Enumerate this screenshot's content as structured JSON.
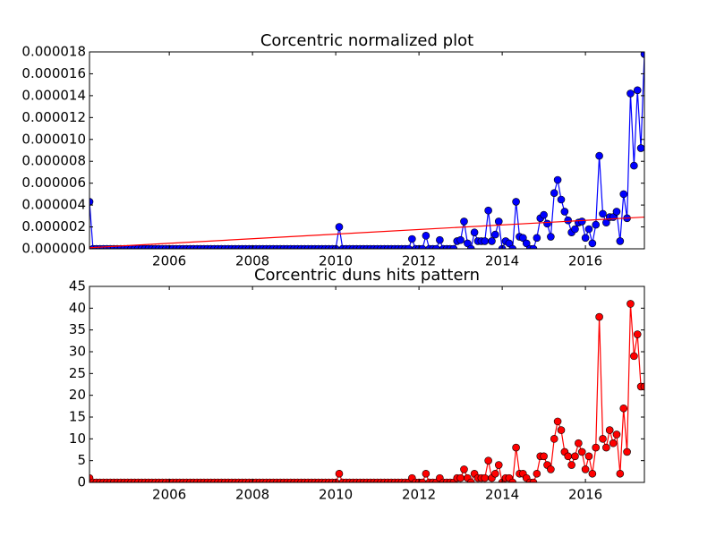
{
  "chart_data": [
    {
      "type": "line",
      "title": "Corcentric normalized plot",
      "x": [
        2004.083,
        2004.167,
        2004.25,
        2004.333,
        2004.417,
        2004.5,
        2004.583,
        2004.667,
        2004.75,
        2004.833,
        2004.917,
        2005,
        2005.083,
        2005.167,
        2005.25,
        2005.333,
        2005.417,
        2005.5,
        2005.583,
        2005.667,
        2005.75,
        2005.833,
        2005.917,
        2006,
        2006.083,
        2006.167,
        2006.25,
        2006.333,
        2006.417,
        2006.5,
        2006.583,
        2006.667,
        2006.75,
        2006.833,
        2006.917,
        2007,
        2007.083,
        2007.167,
        2007.25,
        2007.333,
        2007.417,
        2007.5,
        2007.583,
        2007.667,
        2007.75,
        2007.833,
        2007.917,
        2008,
        2008.083,
        2008.167,
        2008.25,
        2008.333,
        2008.417,
        2008.5,
        2008.583,
        2008.667,
        2008.75,
        2008.833,
        2008.917,
        2009,
        2009.083,
        2009.167,
        2009.25,
        2009.333,
        2009.417,
        2009.5,
        2009.583,
        2009.667,
        2009.75,
        2009.833,
        2009.917,
        2010,
        2010.083,
        2010.167,
        2010.25,
        2010.333,
        2010.417,
        2010.5,
        2010.583,
        2010.667,
        2010.75,
        2010.833,
        2010.917,
        2011,
        2011.083,
        2011.167,
        2011.25,
        2011.333,
        2011.417,
        2011.5,
        2011.583,
        2011.667,
        2011.75,
        2011.833,
        2011.917,
        2012,
        2012.083,
        2012.167,
        2012.25,
        2012.333,
        2012.417,
        2012.5,
        2012.583,
        2012.667,
        2012.75,
        2012.833,
        2012.917,
        2013,
        2013.083,
        2013.167,
        2013.25,
        2013.333,
        2013.417,
        2013.5,
        2013.583,
        2013.667,
        2013.75,
        2013.833,
        2013.917,
        2014,
        2014.083,
        2014.167,
        2014.25,
        2014.333,
        2014.417,
        2014.5,
        2014.583,
        2014.667,
        2014.75,
        2014.833,
        2014.917,
        2015,
        2015.083,
        2015.167,
        2015.25,
        2015.333,
        2015.417,
        2015.5,
        2015.583,
        2015.667,
        2015.75,
        2015.833,
        2015.917,
        2016,
        2016.083,
        2016.167,
        2016.25,
        2016.333,
        2016.417,
        2016.5,
        2016.583,
        2016.667,
        2016.75,
        2016.833,
        2016.917,
        2017,
        2017.083,
        2017.167,
        2017.25,
        2017.333,
        2017.417
      ],
      "series": [
        {
          "color": "#0000ff",
          "marker": true,
          "values": [
            4.3e-06,
            0,
            0,
            0,
            0,
            0,
            0,
            0,
            0,
            0,
            0,
            0,
            0,
            0,
            0,
            0,
            0,
            0,
            0,
            0,
            0,
            0,
            0,
            0,
            0,
            0,
            0,
            0,
            0,
            0,
            0,
            0,
            0,
            0,
            0,
            0,
            0,
            0,
            0,
            0,
            0,
            0,
            0,
            0,
            0,
            0,
            0,
            0,
            0,
            0,
            0,
            0,
            0,
            0,
            0,
            0,
            0,
            0,
            0,
            0,
            0,
            0,
            0,
            0,
            0,
            0,
            0,
            0,
            0,
            0,
            0,
            0,
            2e-06,
            0,
            0,
            0,
            0,
            0,
            0,
            0,
            0,
            0,
            0,
            0,
            0,
            0,
            0,
            0,
            0,
            0,
            0,
            0,
            0,
            9e-07,
            0,
            0,
            0,
            1.2e-06,
            0,
            0,
            0,
            8e-07,
            0,
            0,
            0,
            0,
            7e-07,
            8e-07,
            2.5e-06,
            5e-07,
            0,
            1.5e-06,
            7e-07,
            7e-07,
            7e-07,
            3.5e-06,
            7e-07,
            1.3e-06,
            2.5e-06,
            0,
            7e-07,
            5e-07,
            0,
            4.3e-06,
            1.1e-06,
            1e-06,
            5e-07,
            0,
            0,
            1e-06,
            2.8e-06,
            3.1e-06,
            2.3e-06,
            1.1e-06,
            5.1e-06,
            6.3e-06,
            4.5e-06,
            3.4e-06,
            2.6e-06,
            1.5e-06,
            1.8e-06,
            2.4e-06,
            2.5e-06,
            1e-06,
            1.8e-06,
            5e-07,
            2.2e-06,
            8.5e-06,
            3.2e-06,
            2.4e-06,
            2.9e-06,
            2.9e-06,
            3.4e-06,
            7e-07,
            5e-06,
            2.8e-06,
            1.42e-05,
            7.6e-06,
            1.45e-05,
            9.2e-06,
            1.78e-05
          ]
        },
        {
          "color": "#ff0000",
          "marker": false,
          "x": [
            2004.083,
            2017.417
          ],
          "values": [
            1e-07,
            2.9e-06
          ]
        }
      ],
      "xlim": [
        2004.083,
        2017.417
      ],
      "xticks": [
        2006,
        2008,
        2010,
        2012,
        2014,
        2016
      ],
      "ylim": [
        0,
        1.8e-05
      ],
      "yticks": [
        {
          "value": 0,
          "label": "0.000000"
        },
        {
          "value": 2e-06,
          "label": "0.000002"
        },
        {
          "value": 4e-06,
          "label": "0.000004"
        },
        {
          "value": 6e-06,
          "label": "0.000006"
        },
        {
          "value": 8e-06,
          "label": "0.000008"
        },
        {
          "value": 1e-05,
          "label": "0.000010"
        },
        {
          "value": 1.2e-05,
          "label": "0.000012"
        },
        {
          "value": 1.4e-05,
          "label": "0.000014"
        },
        {
          "value": 1.6e-05,
          "label": "0.000016"
        },
        {
          "value": 1.8e-05,
          "label": "0.000018"
        }
      ]
    },
    {
      "type": "line",
      "title": "Corcentric duns hits pattern",
      "x": [
        2004.083,
        2004.167,
        2004.25,
        2004.333,
        2004.417,
        2004.5,
        2004.583,
        2004.667,
        2004.75,
        2004.833,
        2004.917,
        2005,
        2005.083,
        2005.167,
        2005.25,
        2005.333,
        2005.417,
        2005.5,
        2005.583,
        2005.667,
        2005.75,
        2005.833,
        2005.917,
        2006,
        2006.083,
        2006.167,
        2006.25,
        2006.333,
        2006.417,
        2006.5,
        2006.583,
        2006.667,
        2006.75,
        2006.833,
        2006.917,
        2007,
        2007.083,
        2007.167,
        2007.25,
        2007.333,
        2007.417,
        2007.5,
        2007.583,
        2007.667,
        2007.75,
        2007.833,
        2007.917,
        2008,
        2008.083,
        2008.167,
        2008.25,
        2008.333,
        2008.417,
        2008.5,
        2008.583,
        2008.667,
        2008.75,
        2008.833,
        2008.917,
        2009,
        2009.083,
        2009.167,
        2009.25,
        2009.333,
        2009.417,
        2009.5,
        2009.583,
        2009.667,
        2009.75,
        2009.833,
        2009.917,
        2010,
        2010.083,
        2010.167,
        2010.25,
        2010.333,
        2010.417,
        2010.5,
        2010.583,
        2010.667,
        2010.75,
        2010.833,
        2010.917,
        2011,
        2011.083,
        2011.167,
        2011.25,
        2011.333,
        2011.417,
        2011.5,
        2011.583,
        2011.667,
        2011.75,
        2011.833,
        2011.917,
        2012,
        2012.083,
        2012.167,
        2012.25,
        2012.333,
        2012.417,
        2012.5,
        2012.583,
        2012.667,
        2012.75,
        2012.833,
        2012.917,
        2013,
        2013.083,
        2013.167,
        2013.25,
        2013.333,
        2013.417,
        2013.5,
        2013.583,
        2013.667,
        2013.75,
        2013.833,
        2013.917,
        2014,
        2014.083,
        2014.167,
        2014.25,
        2014.333,
        2014.417,
        2014.5,
        2014.583,
        2014.667,
        2014.75,
        2014.833,
        2014.917,
        2015,
        2015.083,
        2015.167,
        2015.25,
        2015.333,
        2015.417,
        2015.5,
        2015.583,
        2015.667,
        2015.75,
        2015.833,
        2015.917,
        2016,
        2016.083,
        2016.167,
        2016.25,
        2016.333,
        2016.417,
        2016.5,
        2016.583,
        2016.667,
        2016.75,
        2016.833,
        2016.917,
        2017,
        2017.083,
        2017.167,
        2017.25,
        2017.333,
        2017.417
      ],
      "series": [
        {
          "color": "#ff0000",
          "marker": true,
          "values": [
            1,
            0,
            0,
            0,
            0,
            0,
            0,
            0,
            0,
            0,
            0,
            0,
            0,
            0,
            0,
            0,
            0,
            0,
            0,
            0,
            0,
            0,
            0,
            0,
            0,
            0,
            0,
            0,
            0,
            0,
            0,
            0,
            0,
            0,
            0,
            0,
            0,
            0,
            0,
            0,
            0,
            0,
            0,
            0,
            0,
            0,
            0,
            0,
            0,
            0,
            0,
            0,
            0,
            0,
            0,
            0,
            0,
            0,
            0,
            0,
            0,
            0,
            0,
            0,
            0,
            0,
            0,
            0,
            0,
            0,
            0,
            0,
            2,
            0,
            0,
            0,
            0,
            0,
            0,
            0,
            0,
            0,
            0,
            0,
            0,
            0,
            0,
            0,
            0,
            0,
            0,
            0,
            0,
            1,
            0,
            0,
            0,
            2,
            0,
            0,
            0,
            1,
            0,
            0,
            0,
            0,
            1,
            1,
            3,
            1,
            0,
            2,
            1,
            1,
            1,
            5,
            1,
            2,
            4,
            0,
            1,
            1,
            0,
            8,
            2,
            2,
            1,
            0,
            0,
            2,
            6,
            6,
            4,
            3,
            10,
            14,
            12,
            7,
            6,
            4,
            6,
            9,
            7,
            3,
            6,
            2,
            8,
            38,
            10,
            8,
            12,
            9,
            11,
            2,
            17,
            7,
            41,
            29,
            34,
            22,
            22
          ]
        }
      ],
      "xlim": [
        2004.083,
        2017.417
      ],
      "xticks": [
        2006,
        2008,
        2010,
        2012,
        2014,
        2016
      ],
      "ylim": [
        0,
        45
      ],
      "yticks": [
        0,
        5,
        10,
        15,
        20,
        25,
        30,
        35,
        40,
        45
      ]
    }
  ]
}
